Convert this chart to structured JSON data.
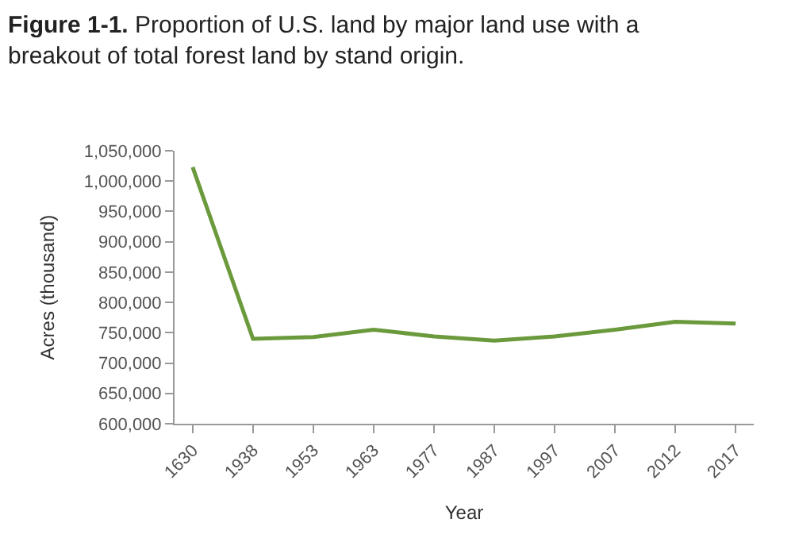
{
  "chart_data": {
    "type": "line",
    "title": "Figure 1-1. Proportion of U.S. land by major land use with a breakout of total forest land by stand origin.",
    "xlabel": "Year",
    "ylabel": "Acres (thousand)",
    "categories": [
      "1630",
      "1938",
      "1953",
      "1963",
      "1977",
      "1987",
      "1997",
      "2007",
      "2012",
      "2017"
    ],
    "series": [
      {
        "color": "#6b9a3c",
        "values": [
          1023000,
          740000,
          743000,
          755000,
          744000,
          737000,
          744000,
          755000,
          768000,
          765000
        ]
      }
    ],
    "ylim": [
      600000,
      1050000
    ],
    "yticks": [
      {
        "value": 600000,
        "label": "600,000"
      },
      {
        "value": 650000,
        "label": "650,000"
      },
      {
        "value": 700000,
        "label": "700,000"
      },
      {
        "value": 750000,
        "label": "750,000"
      },
      {
        "value": 800000,
        "label": "800,000"
      },
      {
        "value": 850000,
        "label": "850,000"
      },
      {
        "value": 900000,
        "label": "900,000"
      },
      {
        "value": 950000,
        "label": "950,000"
      },
      {
        "value": 1000000,
        "label": "1,000,000"
      },
      {
        "value": 1050000,
        "label": "1,050,000"
      }
    ],
    "marker": "none",
    "line_style": "solid"
  }
}
